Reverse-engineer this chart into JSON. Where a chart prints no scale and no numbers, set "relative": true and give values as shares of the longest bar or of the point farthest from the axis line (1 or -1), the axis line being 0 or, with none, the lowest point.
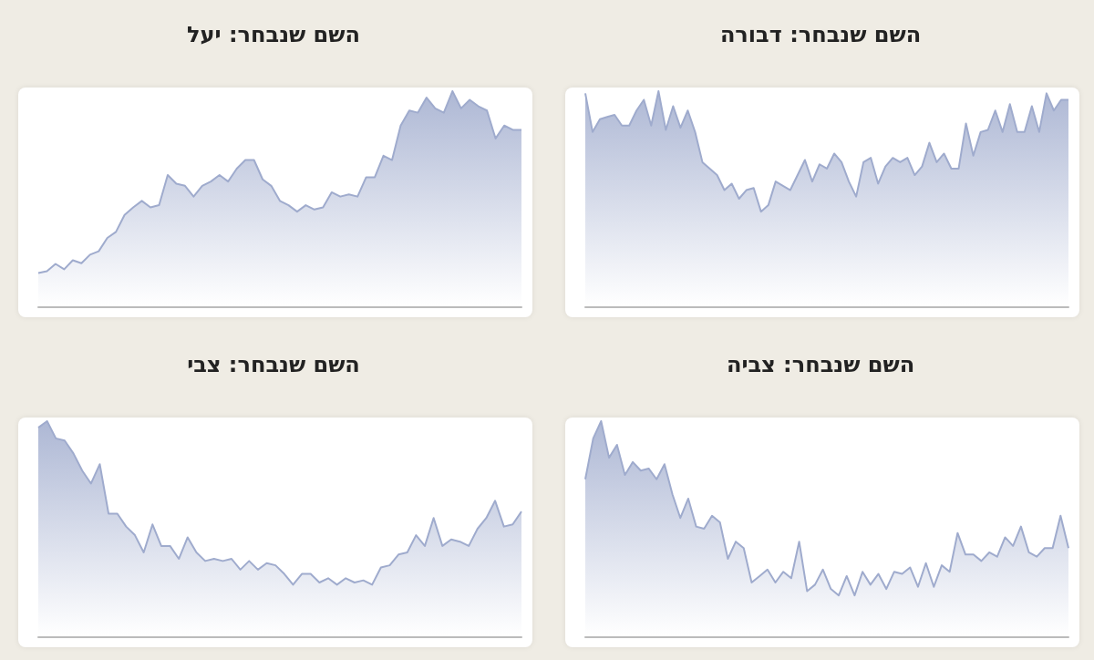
{
  "chart_data": [
    {
      "type": "area",
      "title": "השם שנבחר: יעל",
      "relative": true,
      "categories": [
        null,
        null,
        null,
        null,
        null,
        null,
        null,
        null,
        null,
        null,
        null,
        null,
        null,
        null,
        null,
        null,
        null,
        null,
        null,
        null,
        null,
        null,
        null,
        null,
        null,
        null,
        null,
        null,
        null,
        null,
        null,
        null,
        null,
        null,
        null,
        null,
        null,
        null,
        null,
        null,
        null,
        null,
        null,
        null,
        null,
        null,
        null,
        null,
        null,
        null,
        null,
        null,
        null,
        null,
        null,
        null,
        null
      ],
      "series": [
        {
          "color": "#9fabcd",
          "values": [
            0.155,
            0.163,
            0.197,
            0.172,
            0.214,
            0.2,
            0.24,
            0.256,
            0.318,
            0.346,
            0.425,
            0.46,
            0.49,
            0.46,
            0.47,
            0.61,
            0.57,
            0.56,
            0.51,
            0.56,
            0.58,
            0.61,
            0.58,
            0.64,
            0.68,
            0.68,
            0.59,
            0.56,
            0.49,
            0.47,
            0.44,
            0.47,
            0.45,
            0.46,
            0.53,
            0.51,
            0.52,
            0.51,
            0.6,
            0.6,
            0.7,
            0.68,
            0.84,
            0.91,
            0.9,
            0.97,
            0.92,
            0.9,
            1.0,
            0.92,
            0.96,
            0.93,
            0.91,
            0.78,
            0.84,
            0.82,
            0.82
          ]
        }
      ]
    },
    {
      "type": "area",
      "title": "השם שנבחר: דבורה",
      "relative": true,
      "categories": [
        null,
        null,
        null,
        null,
        null,
        null,
        null,
        null,
        null,
        null,
        null,
        null,
        null,
        null,
        null,
        null,
        null,
        null,
        null,
        null,
        null,
        null,
        null,
        null,
        null,
        null,
        null,
        null,
        null,
        null,
        null,
        null,
        null,
        null,
        null,
        null,
        null,
        null,
        null,
        null,
        null,
        null,
        null,
        null,
        null,
        null,
        null,
        null,
        null,
        null,
        null,
        null,
        null,
        null,
        null,
        null,
        null,
        null,
        null,
        null,
        null,
        null,
        null,
        null,
        null,
        null,
        null
      ],
      "series": [
        {
          "color": "#9fabcd",
          "values": [
            0.99,
            0.81,
            0.87,
            0.88,
            0.89,
            0.84,
            0.84,
            0.91,
            0.96,
            0.84,
            1.0,
            0.82,
            0.93,
            0.83,
            0.91,
            0.81,
            0.67,
            0.64,
            0.61,
            0.54,
            0.57,
            0.5,
            0.54,
            0.55,
            0.44,
            0.47,
            0.58,
            0.56,
            0.54,
            0.61,
            0.68,
            0.58,
            0.66,
            0.64,
            0.71,
            0.67,
            0.58,
            0.51,
            0.67,
            0.69,
            0.57,
            0.65,
            0.69,
            0.67,
            0.69,
            0.61,
            0.65,
            0.76,
            0.67,
            0.71,
            0.64,
            0.64,
            0.85,
            0.7,
            0.81,
            0.82,
            0.91,
            0.81,
            0.94,
            0.81,
            0.81,
            0.93,
            0.81,
            0.99,
            0.91,
            0.96,
            0.96
          ]
        }
      ]
    },
    {
      "type": "area",
      "title": "השם שנבחר: צבי",
      "relative": true,
      "categories": [
        null,
        null,
        null,
        null,
        null,
        null,
        null,
        null,
        null,
        null,
        null,
        null,
        null,
        null,
        null,
        null,
        null,
        null,
        null,
        null,
        null,
        null,
        null,
        null,
        null,
        null,
        null,
        null,
        null,
        null,
        null,
        null,
        null,
        null,
        null,
        null,
        null,
        null,
        null,
        null,
        null,
        null,
        null,
        null,
        null,
        null,
        null,
        null,
        null,
        null,
        null,
        null,
        null,
        null,
        null,
        null
      ],
      "series": [
        {
          "color": "#9fabcd",
          "values": [
            0.97,
            1.0,
            0.92,
            0.91,
            0.85,
            0.77,
            0.71,
            0.8,
            0.57,
            0.57,
            0.51,
            0.47,
            0.39,
            0.52,
            0.42,
            0.42,
            0.36,
            0.46,
            0.39,
            0.35,
            0.36,
            0.35,
            0.36,
            0.31,
            0.35,
            0.31,
            0.34,
            0.33,
            0.29,
            0.24,
            0.29,
            0.29,
            0.25,
            0.27,
            0.24,
            0.27,
            0.25,
            0.26,
            0.24,
            0.32,
            0.33,
            0.38,
            0.39,
            0.47,
            0.42,
            0.55,
            0.42,
            0.45,
            0.44,
            0.42,
            0.5,
            0.55,
            0.63,
            0.51,
            0.52,
            0.58
          ]
        }
      ]
    },
    {
      "type": "area",
      "title": "השם שנבחר: צביה",
      "relative": true,
      "categories": [
        null,
        null,
        null,
        null,
        null,
        null,
        null,
        null,
        null,
        null,
        null,
        null,
        null,
        null,
        null,
        null,
        null,
        null,
        null,
        null,
        null,
        null,
        null,
        null,
        null,
        null,
        null,
        null,
        null,
        null,
        null,
        null,
        null,
        null,
        null,
        null,
        null,
        null,
        null,
        null,
        null,
        null,
        null,
        null,
        null,
        null,
        null,
        null,
        null,
        null,
        null,
        null,
        null,
        null,
        null,
        null,
        null,
        null,
        null,
        null,
        null,
        null
      ],
      "series": [
        {
          "color": "#9fabcd",
          "values": [
            0.73,
            0.92,
            1.0,
            0.83,
            0.89,
            0.75,
            0.81,
            0.77,
            0.78,
            0.73,
            0.8,
            0.66,
            0.55,
            0.64,
            0.51,
            0.5,
            0.56,
            0.53,
            0.36,
            0.44,
            0.41,
            0.25,
            0.28,
            0.31,
            0.25,
            0.3,
            0.27,
            0.44,
            0.21,
            0.24,
            0.31,
            0.22,
            0.19,
            0.28,
            0.19,
            0.3,
            0.24,
            0.29,
            0.22,
            0.3,
            0.29,
            0.32,
            0.23,
            0.34,
            0.23,
            0.33,
            0.3,
            0.48,
            0.38,
            0.38,
            0.35,
            0.39,
            0.37,
            0.46,
            0.42,
            0.51,
            0.39,
            0.37,
            0.41,
            0.41,
            0.56,
            0.41
          ]
        }
      ]
    }
  ]
}
